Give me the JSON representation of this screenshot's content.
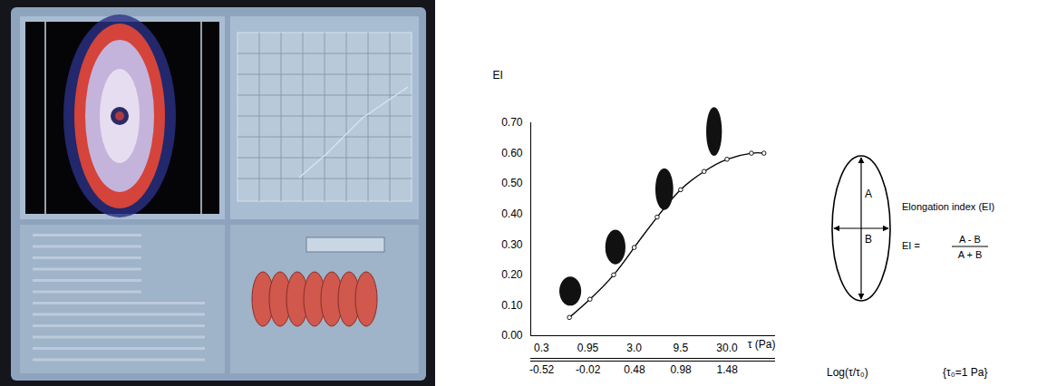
{
  "chart_data": {
    "type": "line",
    "x_label": "τ (Pa)",
    "y_label": "EI",
    "x": [
      0.6,
      1.0,
      1.8,
      3.0,
      5.3,
      9.5,
      17,
      30,
      55,
      75
    ],
    "values": [
      0.06,
      0.12,
      0.2,
      0.29,
      0.39,
      0.48,
      0.54,
      0.58,
      0.6,
      0.6
    ],
    "marker": "circle",
    "log": "x",
    "grid": false,
    "xlim": [
      0.23,
      100
    ],
    "xticks": [
      0.3,
      0.95,
      {
        "value": 3,
        "label": "3.0"
      },
      9.5,
      {
        "value": 30,
        "label": "30.0"
      }
    ],
    "ylim": [
      0,
      0.7
    ],
    "yticks": [
      0,
      0.1,
      0.2,
      0.3,
      0.4,
      0.5,
      0.6,
      0.7
    ],
    "x2_label": "Log(τ/τ₀)",
    "x2_note": "{τ₀=1 Pa}",
    "x2ticks": [
      -0.52,
      -0.02,
      0.48,
      0.98,
      1.48
    ],
    "cells": {
      "x": [
        0.62,
        1.9,
        6.4,
        22
      ],
      "y": [
        0.145,
        0.29,
        0.48,
        0.67
      ]
    }
  },
  "diagram": {
    "title": "Elongation index (EI)",
    "formula_lhs": "EI =",
    "numerator": "A - B",
    "denominator": "A + B",
    "long_axis": "A",
    "short_axis": "B"
  }
}
